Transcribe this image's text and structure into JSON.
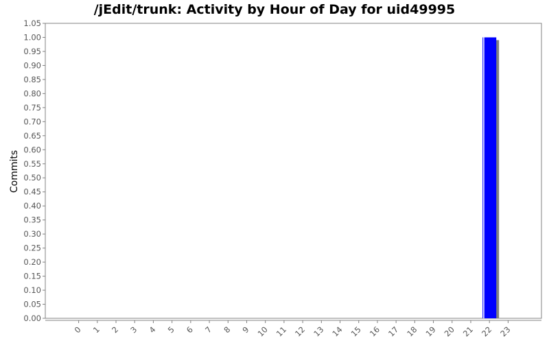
{
  "chart_data": {
    "type": "bar",
    "title": "/jEdit/trunk: Activity by Hour of Day for uid49995",
    "xlabel": "",
    "ylabel": "Commits",
    "categories": [
      "0",
      "1",
      "2",
      "3",
      "4",
      "5",
      "6",
      "7",
      "8",
      "9",
      "10",
      "11",
      "12",
      "13",
      "14",
      "15",
      "16",
      "17",
      "18",
      "19",
      "20",
      "21",
      "22",
      "23"
    ],
    "values": [
      0,
      0,
      0,
      0,
      0,
      0,
      0,
      0,
      0,
      0,
      0,
      0,
      0,
      0,
      0,
      0,
      0,
      0,
      0,
      0,
      0,
      0,
      1,
      0
    ],
    "ylim": [
      0,
      1.05
    ],
    "yticks": [
      "0.00",
      "0.05",
      "0.10",
      "0.15",
      "0.20",
      "0.25",
      "0.30",
      "0.35",
      "0.40",
      "0.45",
      "0.50",
      "0.55",
      "0.60",
      "0.65",
      "0.70",
      "0.75",
      "0.80",
      "0.85",
      "0.90",
      "0.95",
      "1.00",
      "1.05"
    ],
    "grid": false,
    "bar_color": "#0000ff",
    "shadow_color": "#808080"
  }
}
